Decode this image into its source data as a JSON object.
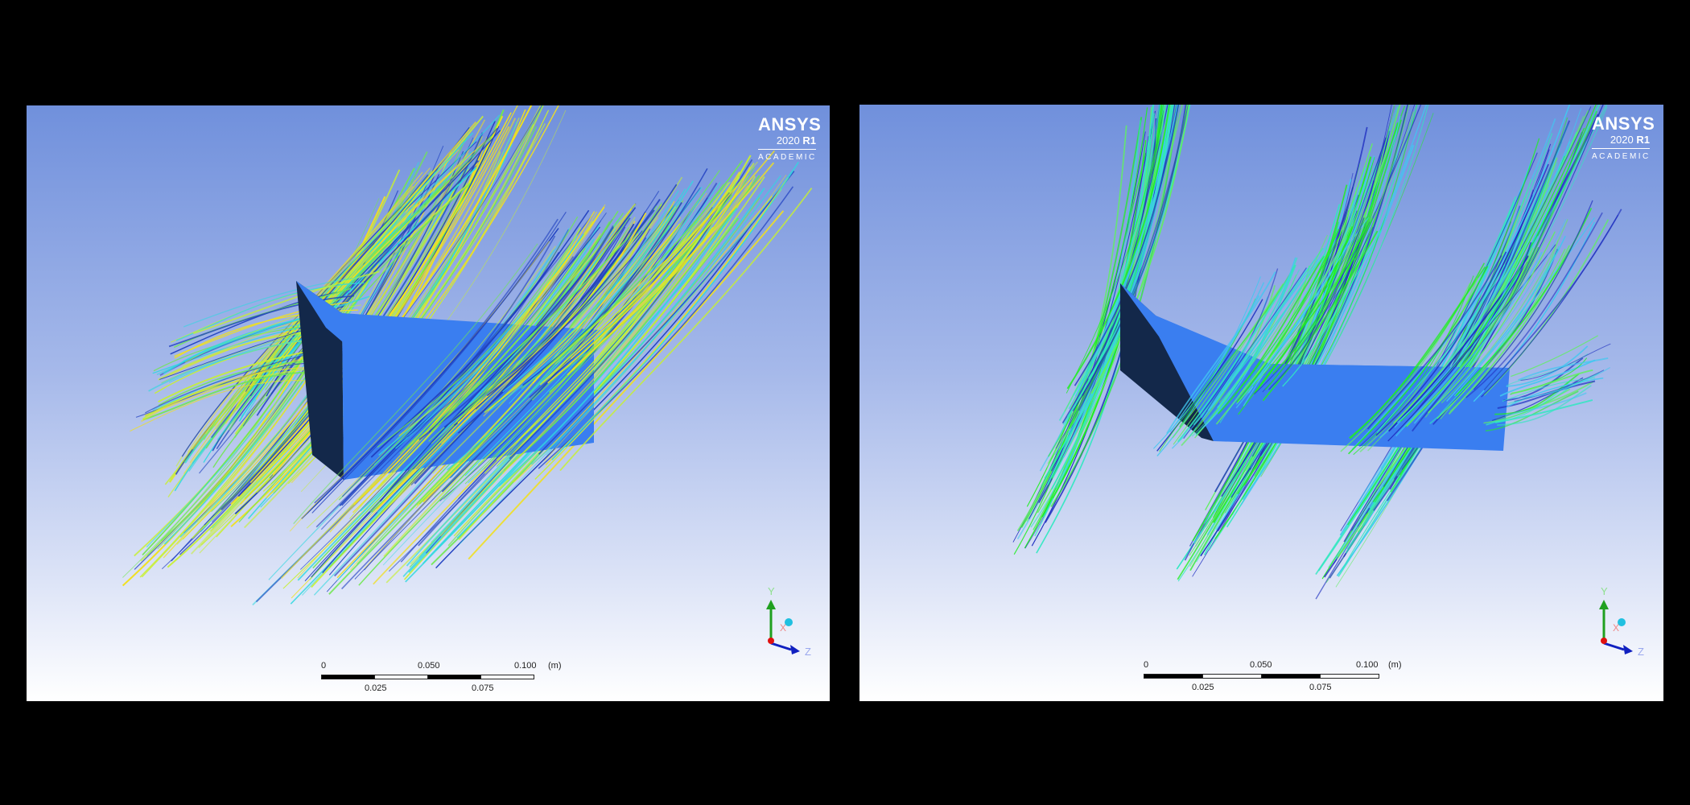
{
  "panels": [
    {
      "id": "left",
      "logo": {
        "brand": "ANSYS",
        "version": "2020",
        "release": "R1",
        "edition": "ACADEMIC"
      },
      "scale_bar": {
        "top_labels": [
          "0",
          "0.050",
          "0.100"
        ],
        "bottom_labels": [
          "0.025",
          "0.075"
        ],
        "unit": "(m)"
      },
      "axes": {
        "y": "Y",
        "x": "X",
        "z": "Z"
      },
      "streamline_colors": [
        "#f0e020",
        "#c8f030",
        "#70e850",
        "#30d8e0",
        "#2040c0"
      ]
    },
    {
      "id": "right",
      "logo": {
        "brand": "ANSYS",
        "version": "2020",
        "release": "R1",
        "edition": "ACADEMIC"
      },
      "scale_bar": {
        "top_labels": [
          "0",
          "0.050",
          "0.100"
        ],
        "bottom_labels": [
          "0.025",
          "0.075"
        ],
        "unit": "(m)"
      },
      "axes": {
        "y": "Y",
        "x": "X",
        "z": "Z"
      },
      "streamline_colors": [
        "#20f020",
        "#60f060",
        "#30e8c0",
        "#40c8f0",
        "#2030c0"
      ]
    }
  ],
  "colors": {
    "body_face": "#3a7ef0",
    "body_shadow": "#13284a",
    "axis_y": "#20a020",
    "axis_z": "#1020c0",
    "axis_x": "#e01010",
    "axis_dot": "#20c0e0"
  }
}
